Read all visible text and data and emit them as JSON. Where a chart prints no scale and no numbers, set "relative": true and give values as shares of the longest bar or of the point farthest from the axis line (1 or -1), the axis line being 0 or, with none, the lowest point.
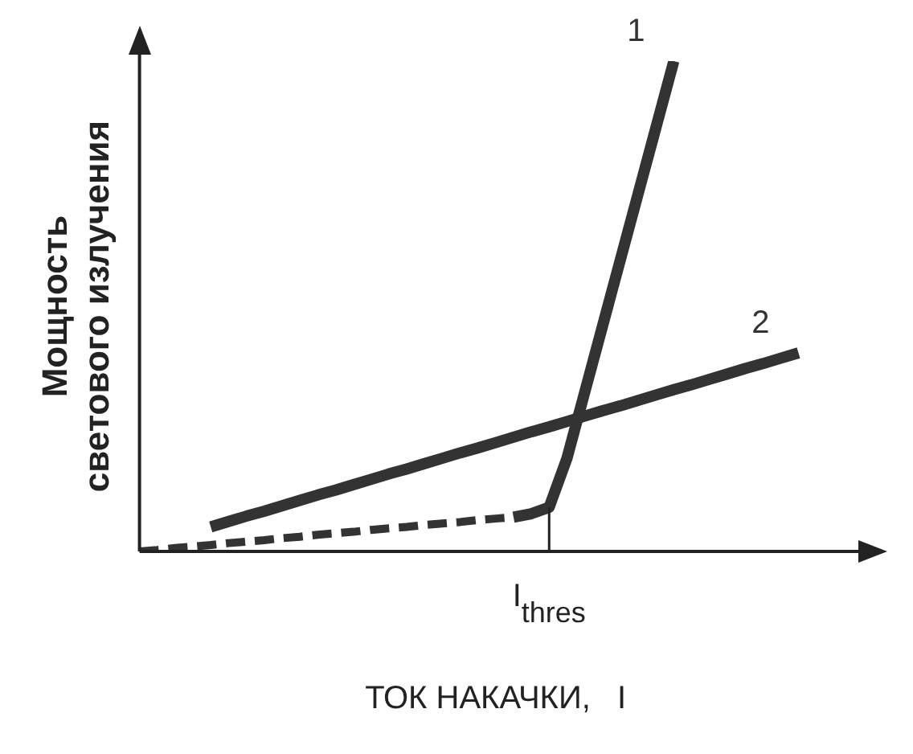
{
  "chart_data": {
    "type": "line",
    "relative": true,
    "xlabel": "ТОК НАКАЧКИ,   I",
    "ylabel": "Мощность\nсветового излучения",
    "annotations": [
      "I$_{thres}$"
    ],
    "grid": false,
    "legend": false,
    "marker": "none",
    "categories": [
      null,
      null,
      null,
      null,
      null,
      null,
      null,
      null,
      null,
      null,
      null,
      null,
      null,
      null,
      null,
      null,
      null,
      null,
      null,
      null,
      null,
      null,
      null,
      null,
      null,
      null,
      null,
      null,
      null,
      null,
      null,
      null,
      null,
      null,
      null,
      null,
      null,
      null,
      null,
      null,
      null
    ],
    "series": [
      {
        "color": "#333333",
        "line_style": "dashed",
        "values": [
          0,
          0.003,
          0.007,
          0.01,
          0.013,
          0.017,
          0.02,
          0.023,
          0.027,
          0.03,
          0.034,
          0.037,
          0.04,
          0.044,
          0.047,
          0.05,
          0.054,
          0.057,
          0.06,
          0.064,
          0.067,
          0.07,
          null,
          null,
          null,
          null,
          null,
          null,
          null,
          null,
          null,
          null,
          null,
          null,
          null,
          null,
          null,
          null,
          null,
          null,
          null
        ]
      },
      {
        "name": "1",
        "color": "#333333",
        "line_style": "solid",
        "values": [
          null,
          null,
          null,
          null,
          null,
          null,
          null,
          null,
          null,
          null,
          null,
          null,
          null,
          null,
          null,
          null,
          null,
          null,
          null,
          null,
          null,
          0.07,
          0.077,
          0.09,
          0.19,
          0.325,
          0.46,
          0.595,
          0.73,
          0.865,
          1,
          null,
          null,
          null,
          null,
          null,
          null,
          null,
          null,
          null,
          null
        ]
      },
      {
        "name": "2",
        "color": "#333333",
        "line_style": "solid",
        "values": [
          null,
          null,
          null,
          null,
          0.05,
          0.061,
          0.072,
          0.082,
          0.093,
          0.104,
          0.115,
          0.125,
          0.136,
          0.147,
          0.158,
          0.168,
          0.179,
          0.19,
          0.201,
          0.211,
          0.222,
          0.233,
          0.244,
          0.254,
          0.265,
          0.276,
          0.287,
          0.297,
          0.308,
          0.319,
          0.33,
          0.34,
          0.351,
          0.362,
          0.373,
          0.383,
          0.394,
          0.405,
          null,
          null,
          null
        ]
      }
    ]
  }
}
